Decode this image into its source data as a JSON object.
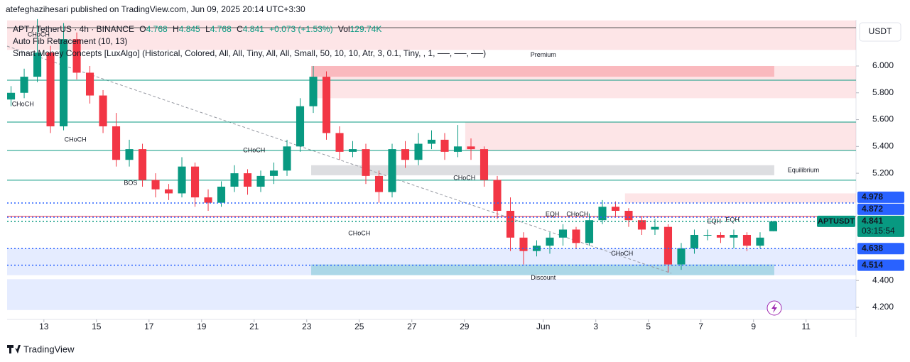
{
  "header": {
    "publisher": "atefeghazihesari published on TradingView.com, Jun 09, 2025 20:14 UTC+3:30",
    "symbol": "APT / TetherUS · 4h · BINANCE",
    "ohlc": [
      {
        "label": "O",
        "value": 4.768
      },
      {
        "label": "H",
        "value": 4.845
      },
      {
        "label": "L",
        "value": 4.768
      },
      {
        "label": "C",
        "value": 4.841
      }
    ],
    "change": "+0.073 (+1.53%)",
    "volume_label": "Vol",
    "volume": "129.74K",
    "indicators": [
      "Auto Fib Retracement (10, 13)",
      "Smart Money Concepts [LuxAlgo] (Historical, Colored, All, All, Tiny, All, All, Small, 50, 10, 10, Atr, 3, 0.1, Tiny, , 1, ──, ──, ──)"
    ]
  },
  "chart_data": {
    "type": "candlestick",
    "currency": "USDT",
    "up_color": "#089981",
    "down_color": "#f23645",
    "x": [
      11.75,
      12.25,
      12.75,
      13.25,
      13.75,
      14.25,
      14.75,
      15.25,
      15.75,
      16.25,
      16.75,
      17.25,
      17.75,
      18.25,
      18.75,
      19.25,
      19.75,
      20.25,
      20.75,
      21.25,
      21.75,
      22.25,
      22.75,
      23.25,
      23.75,
      24.25,
      24.75,
      25.25,
      25.75,
      26.25,
      26.75,
      27.25,
      27.75,
      28.25,
      28.75,
      29.25,
      29.75,
      30.25,
      30.75,
      31.25,
      31.75,
      32.25,
      32.75,
      33.25,
      33.75,
      34.25,
      34.75,
      35.25,
      35.75,
      36.25,
      36.75,
      37.25,
      37.75,
      38.25,
      38.75,
      39.25,
      39.75,
      40.25,
      40.75
    ],
    "open": [
      5.75,
      5.8,
      5.92,
      6.1,
      5.55,
      6.2,
      5.95,
      5.78,
      5.55,
      5.3,
      5.38,
      5.15,
      5.08,
      5.05,
      5.25,
      5.02,
      4.98,
      5.1,
      5.2,
      5.1,
      5.18,
      5.22,
      5.4,
      5.7,
      5.92,
      5.5,
      5.36,
      5.38,
      5.18,
      5.06,
      5.38,
      5.3,
      5.42,
      5.45,
      5.36,
      5.4,
      5.38,
      5.15,
      4.92,
      4.72,
      4.62,
      4.66,
      4.72,
      4.78,
      4.68,
      4.85,
      4.95,
      4.92,
      4.85,
      4.78,
      4.8,
      4.52,
      4.64,
      4.74,
      4.74,
      4.72,
      4.74,
      4.66,
      4.768
    ],
    "high": [
      5.85,
      5.98,
      6.35,
      6.15,
      6.32,
      6.25,
      6.0,
      5.82,
      5.65,
      5.45,
      5.42,
      5.2,
      5.12,
      5.32,
      5.28,
      5.08,
      5.14,
      5.26,
      5.23,
      5.22,
      5.28,
      5.45,
      5.76,
      6.0,
      5.96,
      5.55,
      5.44,
      5.42,
      5.22,
      5.42,
      5.44,
      5.5,
      5.52,
      5.5,
      5.56,
      5.46,
      5.4,
      5.18,
      5.02,
      4.76,
      4.7,
      4.76,
      4.82,
      4.8,
      4.9,
      5.0,
      4.99,
      4.94,
      4.88,
      4.86,
      4.82,
      4.68,
      4.78,
      4.78,
      4.76,
      4.78,
      4.76,
      4.76,
      4.845
    ],
    "low": [
      5.7,
      5.76,
      5.88,
      5.5,
      5.52,
      5.9,
      5.72,
      5.5,
      5.25,
      5.25,
      5.1,
      5.02,
      5.0,
      5.02,
      4.95,
      4.92,
      4.95,
      5.06,
      5.04,
      5.06,
      5.12,
      5.18,
      5.36,
      5.65,
      5.45,
      5.3,
      5.32,
      5.12,
      4.98,
      5.02,
      5.24,
      5.26,
      5.38,
      5.3,
      5.32,
      5.3,
      5.1,
      4.86,
      4.62,
      4.52,
      4.58,
      4.6,
      4.66,
      4.64,
      4.66,
      4.82,
      4.88,
      4.8,
      4.74,
      4.74,
      4.46,
      4.48,
      4.6,
      4.7,
      4.68,
      4.64,
      4.62,
      4.64,
      4.768
    ],
    "close": [
      5.8,
      5.92,
      6.1,
      5.55,
      6.2,
      5.95,
      5.78,
      5.55,
      5.3,
      5.38,
      5.15,
      5.08,
      5.05,
      5.25,
      5.02,
      4.98,
      5.1,
      5.2,
      5.1,
      5.18,
      5.22,
      5.4,
      5.7,
      5.92,
      5.5,
      5.36,
      5.38,
      5.18,
      5.06,
      5.38,
      5.3,
      5.42,
      5.45,
      5.36,
      5.4,
      5.38,
      5.15,
      4.92,
      4.72,
      4.62,
      4.66,
      4.72,
      4.78,
      4.68,
      4.85,
      4.95,
      4.92,
      4.85,
      4.78,
      4.8,
      4.52,
      4.64,
      4.74,
      4.74,
      4.72,
      4.74,
      4.66,
      4.72,
      4.841
    ],
    "xlim": [
      11.6,
      43.9
    ],
    "xticks": [
      13,
      15,
      17,
      19,
      21,
      23,
      25,
      27,
      29,
      {
        "value": 32,
        "label": "Jun"
      },
      {
        "value": 34,
        "label": "3"
      },
      {
        "value": 36,
        "label": "5"
      },
      {
        "value": 38,
        "label": "7"
      },
      {
        "value": 40,
        "label": "9"
      },
      {
        "value": 42,
        "label": "11"
      }
    ],
    "ylim": [
      4.11,
      6.344
    ],
    "yticks": [
      {
        "value": 6,
        "label": "6.000"
      },
      {
        "value": 5.8,
        "label": "5.800"
      },
      {
        "value": 5.6,
        "label": "5.600"
      },
      {
        "value": 5.4,
        "label": "5.400"
      },
      {
        "value": 5.2,
        "label": "5.200"
      },
      {
        "value": 4.4,
        "label": "4.400"
      },
      {
        "value": 4.2,
        "label": "4.200"
      }
    ],
    "zones": [
      {
        "x": [
          11.6,
          43.9
        ],
        "y": [
          6.12,
          6.34
        ],
        "color": "rgba(242,54,69,0.13)"
      },
      {
        "x": [
          23.17,
          43.9
        ],
        "y": [
          5.76,
          6.0
        ],
        "color": "rgba(242,54,69,0.13)"
      },
      {
        "x": [
          23.17,
          40.79
        ],
        "y": [
          5.92,
          6.0
        ],
        "color": "rgba(242,54,69,0.25)"
      },
      {
        "x": [
          29.03,
          43.9
        ],
        "y": [
          5.37,
          5.58
        ],
        "color": "rgba(242,54,69,0.13)"
      },
      {
        "x": [
          23.17,
          40.79
        ],
        "y": [
          5.185,
          5.26
        ],
        "color": "rgba(120,123,134,0.25)"
      },
      {
        "x": [
          35.11,
          43.9
        ],
        "y": [
          4.98,
          5.05
        ],
        "color": "rgba(242,54,69,0.13)"
      },
      {
        "x": [
          11.6,
          43.9
        ],
        "y": [
          4.44,
          4.64
        ],
        "color": "rgba(41,98,255,0.12)"
      },
      {
        "x": [
          23.17,
          40.79
        ],
        "y": [
          4.44,
          4.52
        ],
        "color": "rgba(0,150,160,0.25)"
      },
      {
        "x": [
          11.6,
          43.9
        ],
        "y": [
          4.18,
          4.41
        ],
        "color": "rgba(41,98,255,0.12)"
      }
    ],
    "levels": [
      {
        "value": 6.286,
        "color": "#555555"
      },
      {
        "value": 5.894,
        "color": "#089981"
      },
      {
        "value": 5.582,
        "color": "#089981"
      },
      {
        "value": 5.37,
        "color": "#089981"
      },
      {
        "value": 5.148,
        "color": "#089981"
      },
      {
        "value": 4.878,
        "color": "#f23645"
      }
    ],
    "price_labels": [
      {
        "value": 4.978,
        "color": "#2962ff"
      },
      {
        "value": 4.872,
        "color": "#2962ff"
      },
      {
        "value": 4.841,
        "color": "#089981",
        "name": "APTUSDT",
        "countdown": "03:15:54"
      },
      {
        "value": 4.638,
        "color": "#2962ff"
      },
      {
        "value": 4.514,
        "color": "#2962ff"
      }
    ],
    "annotations": [
      {
        "text": "Premium",
        "x": 32.0,
        "y": 6.08,
        "color": "#f23645"
      },
      {
        "text": "Equilibrium",
        "x": 41.9,
        "y": 5.22,
        "color": "#9598a1"
      },
      {
        "text": "Discount",
        "x": 32.0,
        "y": 4.42,
        "color": "#00897b"
      },
      {
        "text": "CHoCH",
        "x": 12.8,
        "y": 6.233,
        "color": "#089981"
      },
      {
        "text": "CHoCH",
        "x": 12.2,
        "y": 5.714,
        "color": "#f23645"
      },
      {
        "text": "CHoCH",
        "x": 14.2,
        "y": 5.45,
        "color": "#f23645"
      },
      {
        "text": "BOS",
        "x": 16.3,
        "y": 5.127,
        "color": "#f23645"
      },
      {
        "text": "CHoCH",
        "x": 21.0,
        "y": 5.37,
        "color": "#089981"
      },
      {
        "text": "CHoCH",
        "x": 29.0,
        "y": 5.163,
        "color": "#f23645"
      },
      {
        "text": "CHoCH",
        "x": 25.0,
        "y": 4.75,
        "color": "#f23645"
      },
      {
        "text": "EQH",
        "x": 32.35,
        "y": 4.894,
        "color": "#f23645"
      },
      {
        "text": "CHoCH",
        "x": 33.3,
        "y": 4.894,
        "color": "#089981"
      },
      {
        "text": "CHoCH",
        "x": 35.0,
        "y": 4.6,
        "color": "#f23645"
      },
      {
        "text": "EQH",
        "x": 38.5,
        "y": 4.84,
        "color": "#f23645"
      },
      {
        "text": "EQH",
        "x": 39.2,
        "y": 4.85,
        "color": "#f23645"
      }
    ]
  },
  "footer": {
    "brand": "TradingView"
  }
}
